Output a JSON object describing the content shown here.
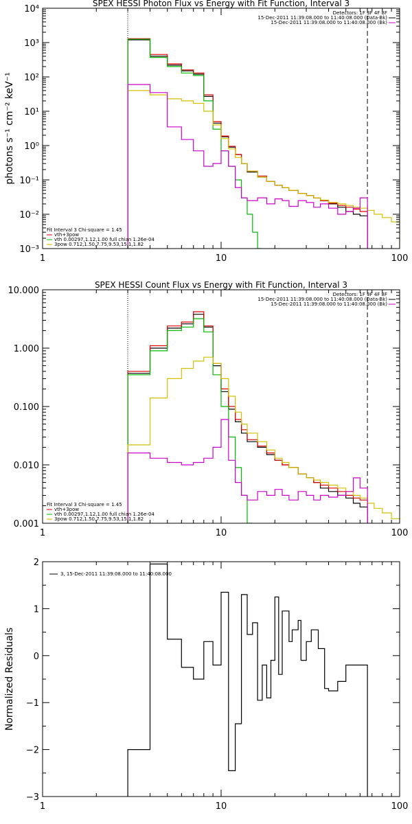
{
  "chart_data": [
    {
      "type": "line",
      "title": "SPEX HESSI Photon Flux vs Energy with Fit Function, Interval 3",
      "ylabel": "photons s⁻¹ cm⁻² keV⁻¹",
      "xscale": "log",
      "yscale": "log",
      "xlim": [
        1,
        100
      ],
      "ylim": [
        0.001,
        10000
      ],
      "xticks": [
        1,
        10,
        100
      ],
      "xtick_labels": [
        "1",
        "10",
        "100"
      ],
      "yticks": [
        0.001,
        0.01,
        0.1,
        1,
        10,
        100,
        1000,
        10000
      ],
      "ytick_labels": [
        "10⁻³",
        "10⁻²",
        "10⁻¹",
        "10⁰",
        "10¹",
        "10²",
        "10³",
        "10⁴"
      ],
      "vlines": [
        {
          "x": 3,
          "style": "dotted"
        },
        {
          "x": 66,
          "style": "dashed"
        }
      ],
      "legend_top_right": [
        {
          "text": "Detectors: 1F 3F 4F 8F",
          "color": "#000000"
        },
        {
          "text": "15-Dec-2011 11:39:08.000 to 11:40:08.000 (Data-Bk)",
          "color": "#000000"
        },
        {
          "text": "15-Dec-2011 11:39:08.000 to 11:40:08.000 (Bk)",
          "color": "#cc00cc"
        }
      ],
      "legend_bottom_left": [
        {
          "text": "Fit Interval 3   Chi-square = 1.45",
          "color": "#000000"
        },
        {
          "text": "vth+3pow",
          "color": "#dd0000"
        },
        {
          "text": "vth 0.00297,1.12,1.00  full chian 1.26e-04",
          "color": "#00bb00"
        },
        {
          "text": "3pow 0.712,1.50,7.75,9.53,15.1,1.82",
          "color": "#d4c000"
        }
      ],
      "series": [
        {
          "color": "#000000",
          "edges": [
            3,
            4,
            5,
            6,
            7,
            8,
            9,
            10,
            11,
            12,
            13,
            14,
            16,
            18,
            20,
            22,
            24,
            27,
            30,
            33,
            36,
            40,
            45,
            50,
            55,
            60,
            66
          ],
          "values": [
            1200,
            400,
            220,
            150,
            120,
            27,
            4.5,
            1.8,
            0.9,
            0.55,
            0.3,
            0.17,
            0.12,
            0.09,
            0.07,
            0.06,
            0.05,
            0.04,
            0.035,
            0.03,
            0.025,
            0.02,
            0.016,
            0.012,
            0.01,
            0.009
          ]
        },
        {
          "color": "#dd0000",
          "edges": [
            3,
            4,
            5,
            6,
            7,
            8,
            9,
            10,
            11,
            12,
            13,
            14,
            16,
            18,
            20,
            22,
            24,
            27,
            30,
            33,
            36,
            40,
            45,
            50,
            55,
            60,
            66
          ],
          "values": [
            1300,
            450,
            240,
            160,
            130,
            30,
            5,
            1.9,
            0.95,
            0.55,
            0.3,
            0.18,
            0.13,
            0.09,
            0.07,
            0.06,
            0.05,
            0.04,
            0.035,
            0.03,
            0.025,
            0.021,
            0.018,
            0.016,
            0.014,
            0.012
          ]
        },
        {
          "color": "#00bb00",
          "edges": [
            3,
            4,
            5,
            6,
            7,
            8,
            9,
            10,
            11,
            12,
            13,
            14,
            15,
            16,
            17
          ],
          "values": [
            1250,
            370,
            200,
            130,
            110,
            20,
            3,
            0.7,
            0.25,
            0.1,
            0.03,
            0.01,
            0.003,
            0.001
          ]
        },
        {
          "color": "#d4c000",
          "edges": [
            3,
            4,
            5,
            6,
            7,
            8,
            9,
            10,
            11,
            12,
            13,
            14,
            16,
            18,
            20,
            22,
            24,
            27,
            30,
            33,
            36,
            40,
            45,
            50,
            55,
            60,
            66,
            72,
            80,
            90,
            100
          ],
          "values": [
            40,
            30,
            23,
            20,
            17,
            10,
            4,
            1.6,
            0.8,
            0.45,
            0.3,
            0.18,
            0.12,
            0.09,
            0.07,
            0.06,
            0.05,
            0.04,
            0.035,
            0.03,
            0.026,
            0.022,
            0.02,
            0.018,
            0.016,
            0.015,
            0.013,
            0.01,
            0.008,
            0.006
          ]
        },
        {
          "color": "#cc00cc",
          "edges": [
            3,
            4,
            5,
            6,
            7,
            8,
            9,
            10,
            11,
            12,
            13,
            14,
            16,
            18,
            20,
            22,
            24,
            27,
            30,
            33,
            36,
            40,
            45,
            50,
            55,
            60,
            66
          ],
          "values": [
            60,
            35,
            3.5,
            1.5,
            0.7,
            0.25,
            0.3,
            0.7,
            0.25,
            0.06,
            0.03,
            0.025,
            0.03,
            0.02,
            0.028,
            0.025,
            0.017,
            0.025,
            0.022,
            0.016,
            0.02,
            0.015,
            0.01,
            0.012,
            0.015,
            0.03
          ]
        }
      ]
    },
    {
      "type": "line",
      "title": "SPEX HESSI Count Flux vs Energy with Fit Function, Interval 3",
      "xscale": "log",
      "yscale": "log",
      "xlim": [
        1,
        100
      ],
      "ylim": [
        0.001,
        10
      ],
      "xticks": [
        1,
        10,
        100
      ],
      "xtick_labels": [
        "1",
        "10",
        "100"
      ],
      "yticks": [
        0.001,
        0.01,
        0.1,
        1,
        10
      ],
      "ytick_labels": [
        "0.001",
        "0.010",
        "0.100",
        "1.000",
        "10.000"
      ],
      "vlines": [
        {
          "x": 3,
          "style": "dotted"
        },
        {
          "x": 66,
          "style": "dashed"
        }
      ],
      "legend_top_right": [
        {
          "text": "Detectors: 1F 3F 4F 8F",
          "color": "#000000"
        },
        {
          "text": "15-Dec-2011 11:39:08.000 to 11:40:08.000 (Data-Bk)",
          "color": "#000000"
        },
        {
          "text": "15-Dec-2011 11:39:08.000 to 11:40:08.000 (Bk)",
          "color": "#cc00cc"
        }
      ],
      "legend_bottom_left": [
        {
          "text": "Fit Interval 3   Chi-square = 1.45",
          "color": "#000000"
        },
        {
          "text": "vth+3pow",
          "color": "#dd0000"
        },
        {
          "text": "vth 0.00297,1.12,1.00  full chian 1.26e-04",
          "color": "#00bb00"
        },
        {
          "text": "3pow 0.712,1.50,7.75,9.53,15.1,1.82",
          "color": "#d4c000"
        }
      ],
      "series": [
        {
          "color": "#000000",
          "edges": [
            3,
            4,
            5,
            6,
            7,
            8,
            9,
            10,
            11,
            12,
            13,
            14,
            16,
            18,
            20,
            22,
            24,
            27,
            30,
            33,
            36,
            40,
            45,
            50,
            55,
            60,
            66
          ],
          "values": [
            0.37,
            1.0,
            2.2,
            2.6,
            3.8,
            2.3,
            0.5,
            0.18,
            0.09,
            0.055,
            0.035,
            0.025,
            0.02,
            0.015,
            0.012,
            0.01,
            0.009,
            0.007,
            0.006,
            0.005,
            0.004,
            0.0035,
            0.003,
            0.0027,
            0.0022,
            0.0019
          ]
        },
        {
          "color": "#dd0000",
          "edges": [
            3,
            4,
            5,
            6,
            7,
            8,
            9,
            10,
            11,
            12,
            13,
            14,
            16,
            18,
            20,
            22,
            24,
            27,
            30,
            33,
            36,
            40,
            45,
            50,
            55,
            60,
            66
          ],
          "values": [
            0.4,
            1.1,
            2.4,
            2.8,
            4.2,
            2.4,
            0.55,
            0.2,
            0.1,
            0.06,
            0.04,
            0.027,
            0.021,
            0.016,
            0.012,
            0.01,
            0.009,
            0.007,
            0.006,
            0.005,
            0.0045,
            0.004,
            0.0035,
            0.003,
            0.0027,
            0.0025
          ]
        },
        {
          "color": "#00bb00",
          "edges": [
            3,
            4,
            5,
            6,
            7,
            8,
            9,
            10,
            11,
            12,
            13,
            14,
            15
          ],
          "values": [
            0.35,
            0.9,
            2.0,
            2.3,
            3.2,
            1.9,
            0.35,
            0.1,
            0.03,
            0.009,
            0.003,
            0.001
          ]
        },
        {
          "color": "#d4c000",
          "edges": [
            3,
            4,
            5,
            6,
            7,
            8,
            9,
            10,
            11,
            12,
            13,
            14,
            16,
            18,
            20,
            22,
            24,
            27,
            30,
            33,
            36,
            40,
            45,
            50,
            55,
            60,
            66,
            72,
            80,
            90,
            100
          ],
          "values": [
            0.022,
            0.14,
            0.3,
            0.45,
            0.6,
            0.7,
            0.55,
            0.3,
            0.15,
            0.08,
            0.05,
            0.035,
            0.025,
            0.018,
            0.013,
            0.011,
            0.009,
            0.007,
            0.006,
            0.0055,
            0.005,
            0.0045,
            0.004,
            0.0035,
            0.003,
            0.0027,
            0.0022,
            0.0018,
            0.0015,
            0.0012
          ]
        },
        {
          "color": "#cc00cc",
          "edges": [
            3,
            4,
            5,
            6,
            7,
            8,
            9,
            10,
            11,
            12,
            13,
            14,
            16,
            18,
            20,
            22,
            24,
            27,
            30,
            33,
            36,
            40,
            45,
            50,
            55,
            60,
            66
          ],
          "values": [
            0.016,
            0.013,
            0.011,
            0.01,
            0.011,
            0.013,
            0.02,
            0.06,
            0.012,
            0.005,
            0.003,
            0.0025,
            0.0035,
            0.003,
            0.0038,
            0.003,
            0.0025,
            0.0035,
            0.003,
            0.0025,
            0.003,
            0.0028,
            0.003,
            0.0035,
            0.006,
            0.004
          ]
        }
      ]
    },
    {
      "type": "line",
      "title": "",
      "ylabel": "Normalized Residuals",
      "xscale": "log",
      "yscale": "linear",
      "xlim": [
        1,
        100
      ],
      "ylim": [
        -3,
        2
      ],
      "xticks": [
        1,
        10,
        100
      ],
      "xtick_labels": [
        "1",
        "10",
        "100"
      ],
      "yticks": [
        -3,
        -2,
        -1,
        0,
        1,
        2
      ],
      "ytick_labels": [
        "−3",
        "−2",
        "−1",
        "0",
        "1",
        "2"
      ],
      "legend": [
        {
          "text": "3, 15-Dec-2011 11:39:08.000 to 11:40:08.000",
          "color": "#000000"
        }
      ],
      "series": [
        {
          "color": "#000000",
          "edges": [
            3,
            4,
            5,
            6,
            7,
            8,
            9,
            10,
            11,
            12,
            13,
            14,
            15,
            16,
            17,
            18,
            19,
            20,
            21,
            22,
            24,
            25,
            27,
            28,
            30,
            32,
            35,
            38,
            40,
            45,
            50,
            55,
            60,
            66
          ],
          "values": [
            -2.0,
            1.95,
            0.35,
            -0.25,
            -0.5,
            0.3,
            -0.2,
            1.35,
            -2.45,
            -1.45,
            1.3,
            0.45,
            0.7,
            -0.95,
            -0.2,
            -0.9,
            -0.1,
            1.25,
            -0.4,
            0.95,
            0.3,
            0.55,
            0.75,
            -0.1,
            0.3,
            0.55,
            0.15,
            -0.7,
            -0.75,
            -0.55,
            -0.2,
            -0.2,
            -0.2
          ]
        }
      ]
    }
  ]
}
